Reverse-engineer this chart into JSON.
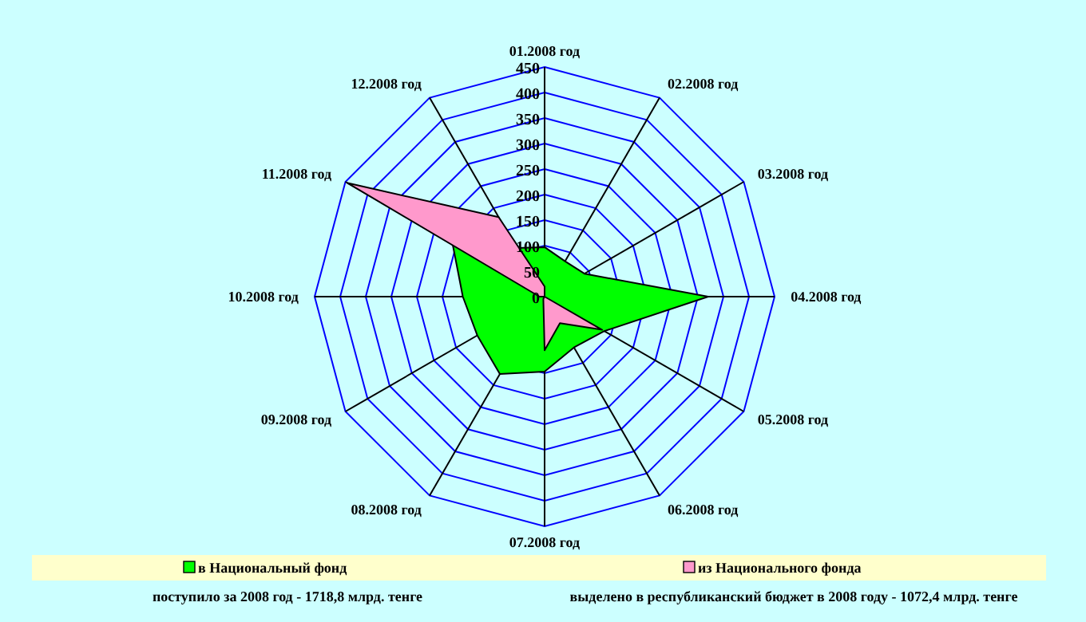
{
  "chart_data": {
    "type": "radar",
    "categories": [
      "01.2008 год",
      "02.2008 год",
      "03.2008 год",
      "04.2008 год",
      "05.2008 год",
      "06.2008 год",
      "07.2008 год",
      "08.2008 год",
      "09.2008 год",
      "10.2008 год",
      "11.2008 год",
      "12.2008 год"
    ],
    "series": [
      {
        "name": "в  Национальный фонд",
        "color": "#00ff00",
        "values": [
          97,
          80,
          90,
          320,
          135,
          115,
          147,
          175,
          152,
          160,
          208,
          110
        ]
      },
      {
        "name": "из  Национального фонда",
        "color": "#ff99cc",
        "values": [
          20,
          0,
          0,
          0,
          130,
          60,
          105,
          5,
          0,
          10,
          445,
          180
        ]
      }
    ],
    "ylim": [
      0,
      450
    ],
    "yticks": [
      0,
      50,
      100,
      150,
      200,
      250,
      300,
      350,
      400,
      450
    ],
    "legend": "bottom",
    "annotations": [
      "поступило за 2008 год -  1718,8 млрд. тенге",
      "выделено  в республиканский бюджет в 2008 году -  1072,4 млрд. тенге"
    ]
  }
}
